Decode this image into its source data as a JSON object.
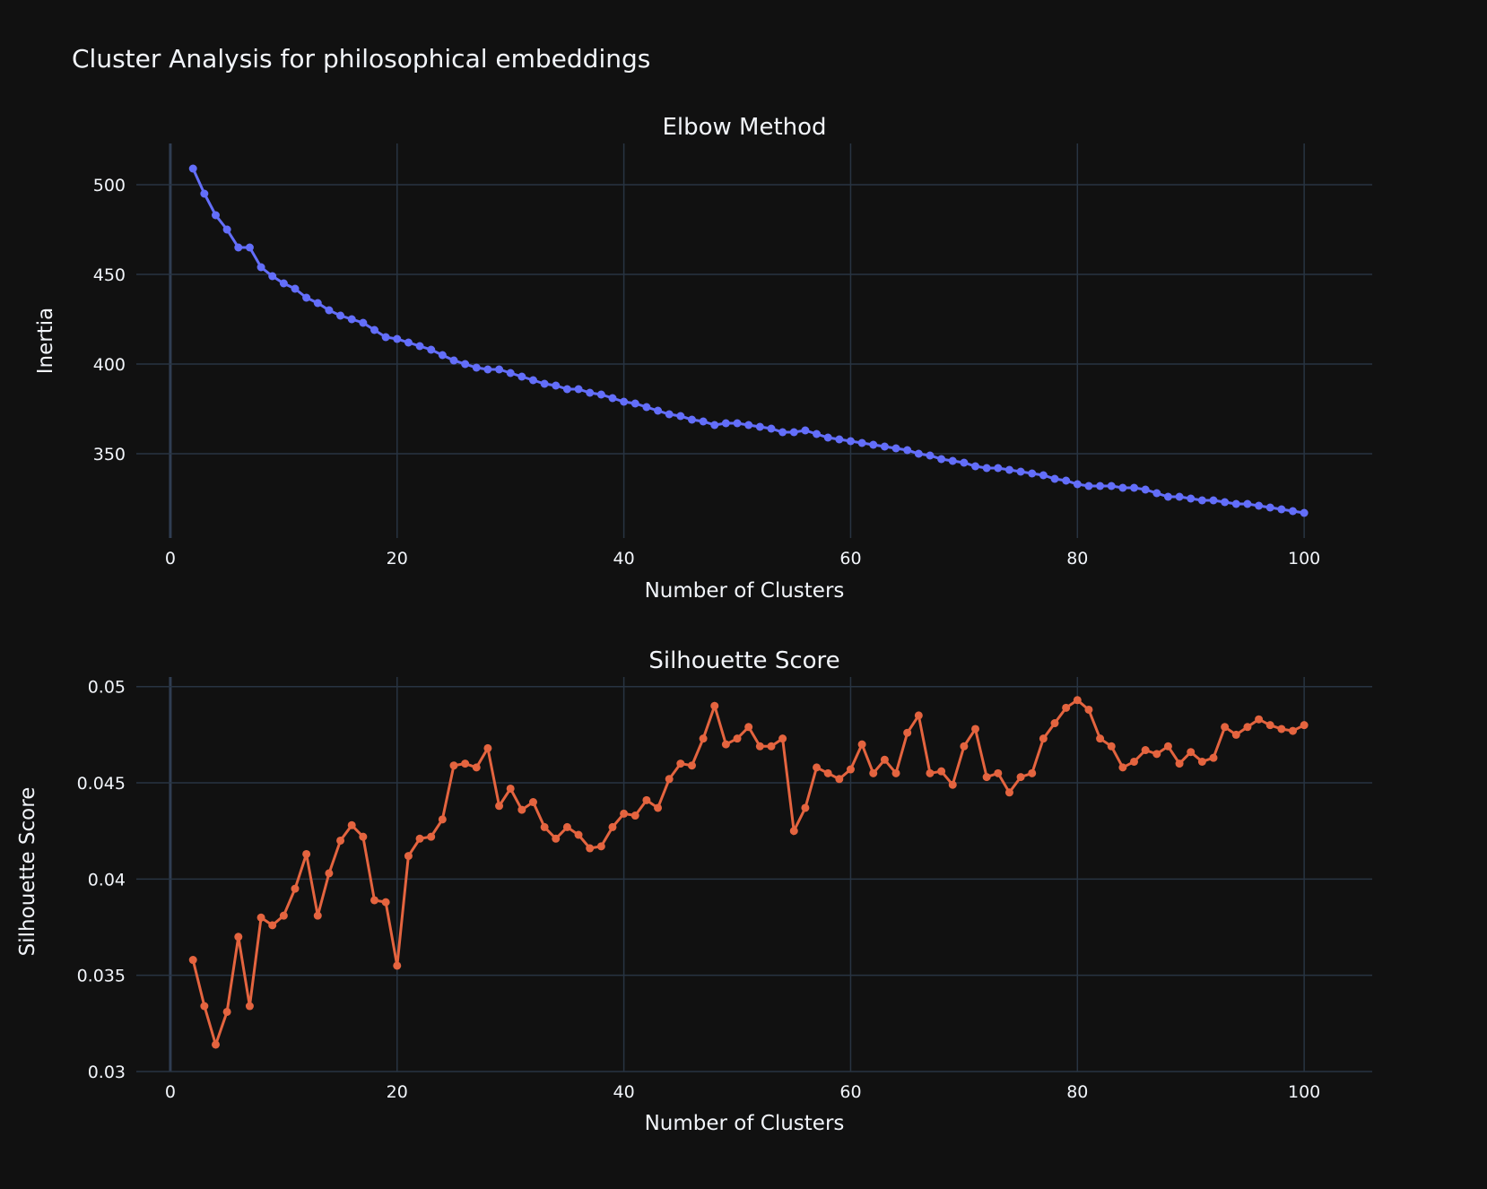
{
  "page": {
    "title": "Cluster Analysis for philosophical embeddings"
  },
  "chart_data": [
    {
      "type": "line",
      "title": "Elbow Method",
      "xlabel": "Number of Clusters",
      "ylabel": "Inertia",
      "xlim": [
        -3,
        106
      ],
      "ylim": [
        303,
        523
      ],
      "xticks": [
        0,
        20,
        40,
        60,
        80,
        100
      ],
      "yticks": [
        350,
        400,
        450,
        500
      ],
      "ytick_labels": [
        "350",
        "400",
        "450",
        "500"
      ],
      "grid": true,
      "color": "#636efa",
      "series": [
        {
          "x": [
            2,
            3,
            4,
            5,
            6,
            7,
            8,
            9,
            10,
            11,
            12,
            13,
            14,
            15,
            16,
            17,
            18,
            19,
            20,
            21,
            22,
            23,
            24,
            25,
            26,
            27,
            28,
            29,
            30,
            31,
            32,
            33,
            34,
            35,
            36,
            37,
            38,
            39,
            40,
            41,
            42,
            43,
            44,
            45,
            46,
            47,
            48,
            49,
            50,
            51,
            52,
            53,
            54,
            55,
            56,
            57,
            58,
            59,
            60,
            61,
            62,
            63,
            64,
            65,
            66,
            67,
            68,
            69,
            70,
            71,
            72,
            73,
            74,
            75,
            76,
            77,
            78,
            79,
            80,
            81,
            82,
            83,
            84,
            85,
            86,
            87,
            88,
            89,
            90,
            91,
            92,
            93,
            94,
            95,
            96,
            97,
            98,
            99,
            100
          ],
          "values": [
            509,
            495,
            483,
            475,
            465,
            465,
            454,
            449,
            445,
            442,
            437,
            434,
            430,
            427,
            425,
            423,
            419,
            415,
            414,
            412,
            410,
            408,
            405,
            402,
            400,
            398,
            397,
            397,
            395,
            393,
            391,
            389,
            388,
            386,
            386,
            384,
            383,
            381,
            379,
            378,
            376,
            374,
            372,
            371,
            369,
            368,
            366,
            367,
            367,
            366,
            365,
            364,
            362,
            362,
            363,
            361,
            359,
            358,
            357,
            356,
            355,
            354,
            353,
            352,
            350,
            349,
            347,
            346,
            345,
            343,
            342,
            342,
            341,
            340,
            339,
            338,
            336,
            335,
            333,
            332,
            332,
            332,
            331,
            331,
            330,
            328,
            326,
            326,
            325,
            324,
            324,
            323,
            322,
            322,
            321,
            320,
            319,
            318,
            317
          ]
        }
      ]
    },
    {
      "type": "line",
      "title": "Silhouette Score",
      "xlabel": "Number of Clusters",
      "ylabel": "Silhouette Score",
      "xlim": [
        -3,
        106
      ],
      "ylim": [
        0.03,
        0.0505
      ],
      "xticks": [
        0,
        20,
        40,
        60,
        80,
        100
      ],
      "yticks": [
        0.03,
        0.035,
        0.04,
        0.045,
        0.05
      ],
      "ytick_labels": [
        "0.03",
        "0.035",
        "0.04",
        "0.045",
        "0.05"
      ],
      "grid": true,
      "color": "#e4643f",
      "series": [
        {
          "x": [
            2,
            3,
            4,
            5,
            6,
            7,
            8,
            9,
            10,
            11,
            12,
            13,
            14,
            15,
            16,
            17,
            18,
            19,
            20,
            21,
            22,
            23,
            24,
            25,
            26,
            27,
            28,
            29,
            30,
            31,
            32,
            33,
            34,
            35,
            36,
            37,
            38,
            39,
            40,
            41,
            42,
            43,
            44,
            45,
            46,
            47,
            48,
            49,
            50,
            51,
            52,
            53,
            54,
            55,
            56,
            57,
            58,
            59,
            60,
            61,
            62,
            63,
            64,
            65,
            66,
            67,
            68,
            69,
            70,
            71,
            72,
            73,
            74,
            75,
            76,
            77,
            78,
            79,
            80,
            81,
            82,
            83,
            84,
            85,
            86,
            87,
            88,
            89,
            90,
            91,
            92,
            93,
            94,
            95,
            96,
            97,
            98,
            99,
            100
          ],
          "values": [
            0.0358,
            0.0334,
            0.0314,
            0.0331,
            0.037,
            0.0334,
            0.038,
            0.0376,
            0.0381,
            0.0395,
            0.0413,
            0.0381,
            0.0403,
            0.042,
            0.0428,
            0.0422,
            0.0389,
            0.0388,
            0.0355,
            0.0412,
            0.0421,
            0.0422,
            0.0431,
            0.0459,
            0.046,
            0.0458,
            0.0468,
            0.0438,
            0.0447,
            0.0436,
            0.044,
            0.0427,
            0.0421,
            0.0427,
            0.0423,
            0.0416,
            0.0417,
            0.0427,
            0.0434,
            0.0433,
            0.0441,
            0.0437,
            0.0452,
            0.046,
            0.0459,
            0.0473,
            0.049,
            0.047,
            0.0473,
            0.0479,
            0.0469,
            0.0469,
            0.0473,
            0.0425,
            0.0437,
            0.0458,
            0.0455,
            0.0452,
            0.0457,
            0.047,
            0.0455,
            0.0462,
            0.0455,
            0.0476,
            0.0485,
            0.0455,
            0.0456,
            0.0449,
            0.0469,
            0.0478,
            0.0453,
            0.0455,
            0.0445,
            0.0453,
            0.0455,
            0.0473,
            0.0481,
            0.0489,
            0.0493,
            0.0488,
            0.0473,
            0.0469,
            0.0458,
            0.0461,
            0.0467,
            0.0465,
            0.0469,
            0.046,
            0.0466,
            0.0461,
            0.0463,
            0.0479,
            0.0475,
            0.0479,
            0.0483,
            0.048,
            0.0478,
            0.0477,
            0.048
          ]
        }
      ]
    }
  ]
}
